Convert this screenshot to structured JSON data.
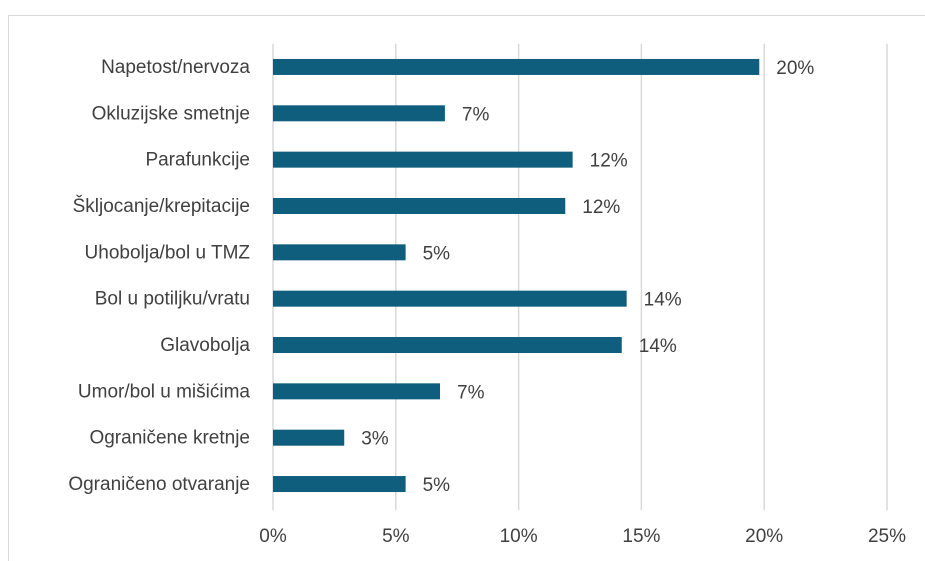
{
  "chart_data": {
    "type": "bar",
    "orientation": "horizontal",
    "categories": [
      "Napetost/nervoza",
      "Okluzijske smetnje",
      "Parafunkcije",
      "Škljocanje/krepitacije",
      "Uhobolja/bol u TMZ",
      "Bol u potiljku/vratu",
      "Glavobolja",
      "Umor/bol u mišićima",
      "Ograničene kretnje",
      "Ograničeno otvaranje"
    ],
    "values": [
      19.8,
      7.0,
      12.2,
      11.9,
      5.4,
      14.4,
      14.2,
      6.8,
      2.9,
      5.4
    ],
    "value_labels": [
      "20%",
      "7%",
      "12%",
      "12%",
      "5%",
      "14%",
      "14%",
      "7%",
      "3%",
      "5%"
    ],
    "color": "#0f5e7e",
    "xlim": [
      0,
      25
    ],
    "xticks": [
      {
        "value": 0,
        "label": "0%"
      },
      {
        "value": 5,
        "label": "5%"
      },
      {
        "value": 10,
        "label": "10%"
      },
      {
        "value": 15,
        "label": "15%"
      },
      {
        "value": 20,
        "label": "20%"
      },
      {
        "value": 25,
        "label": "25%"
      }
    ],
    "grid": true
  }
}
